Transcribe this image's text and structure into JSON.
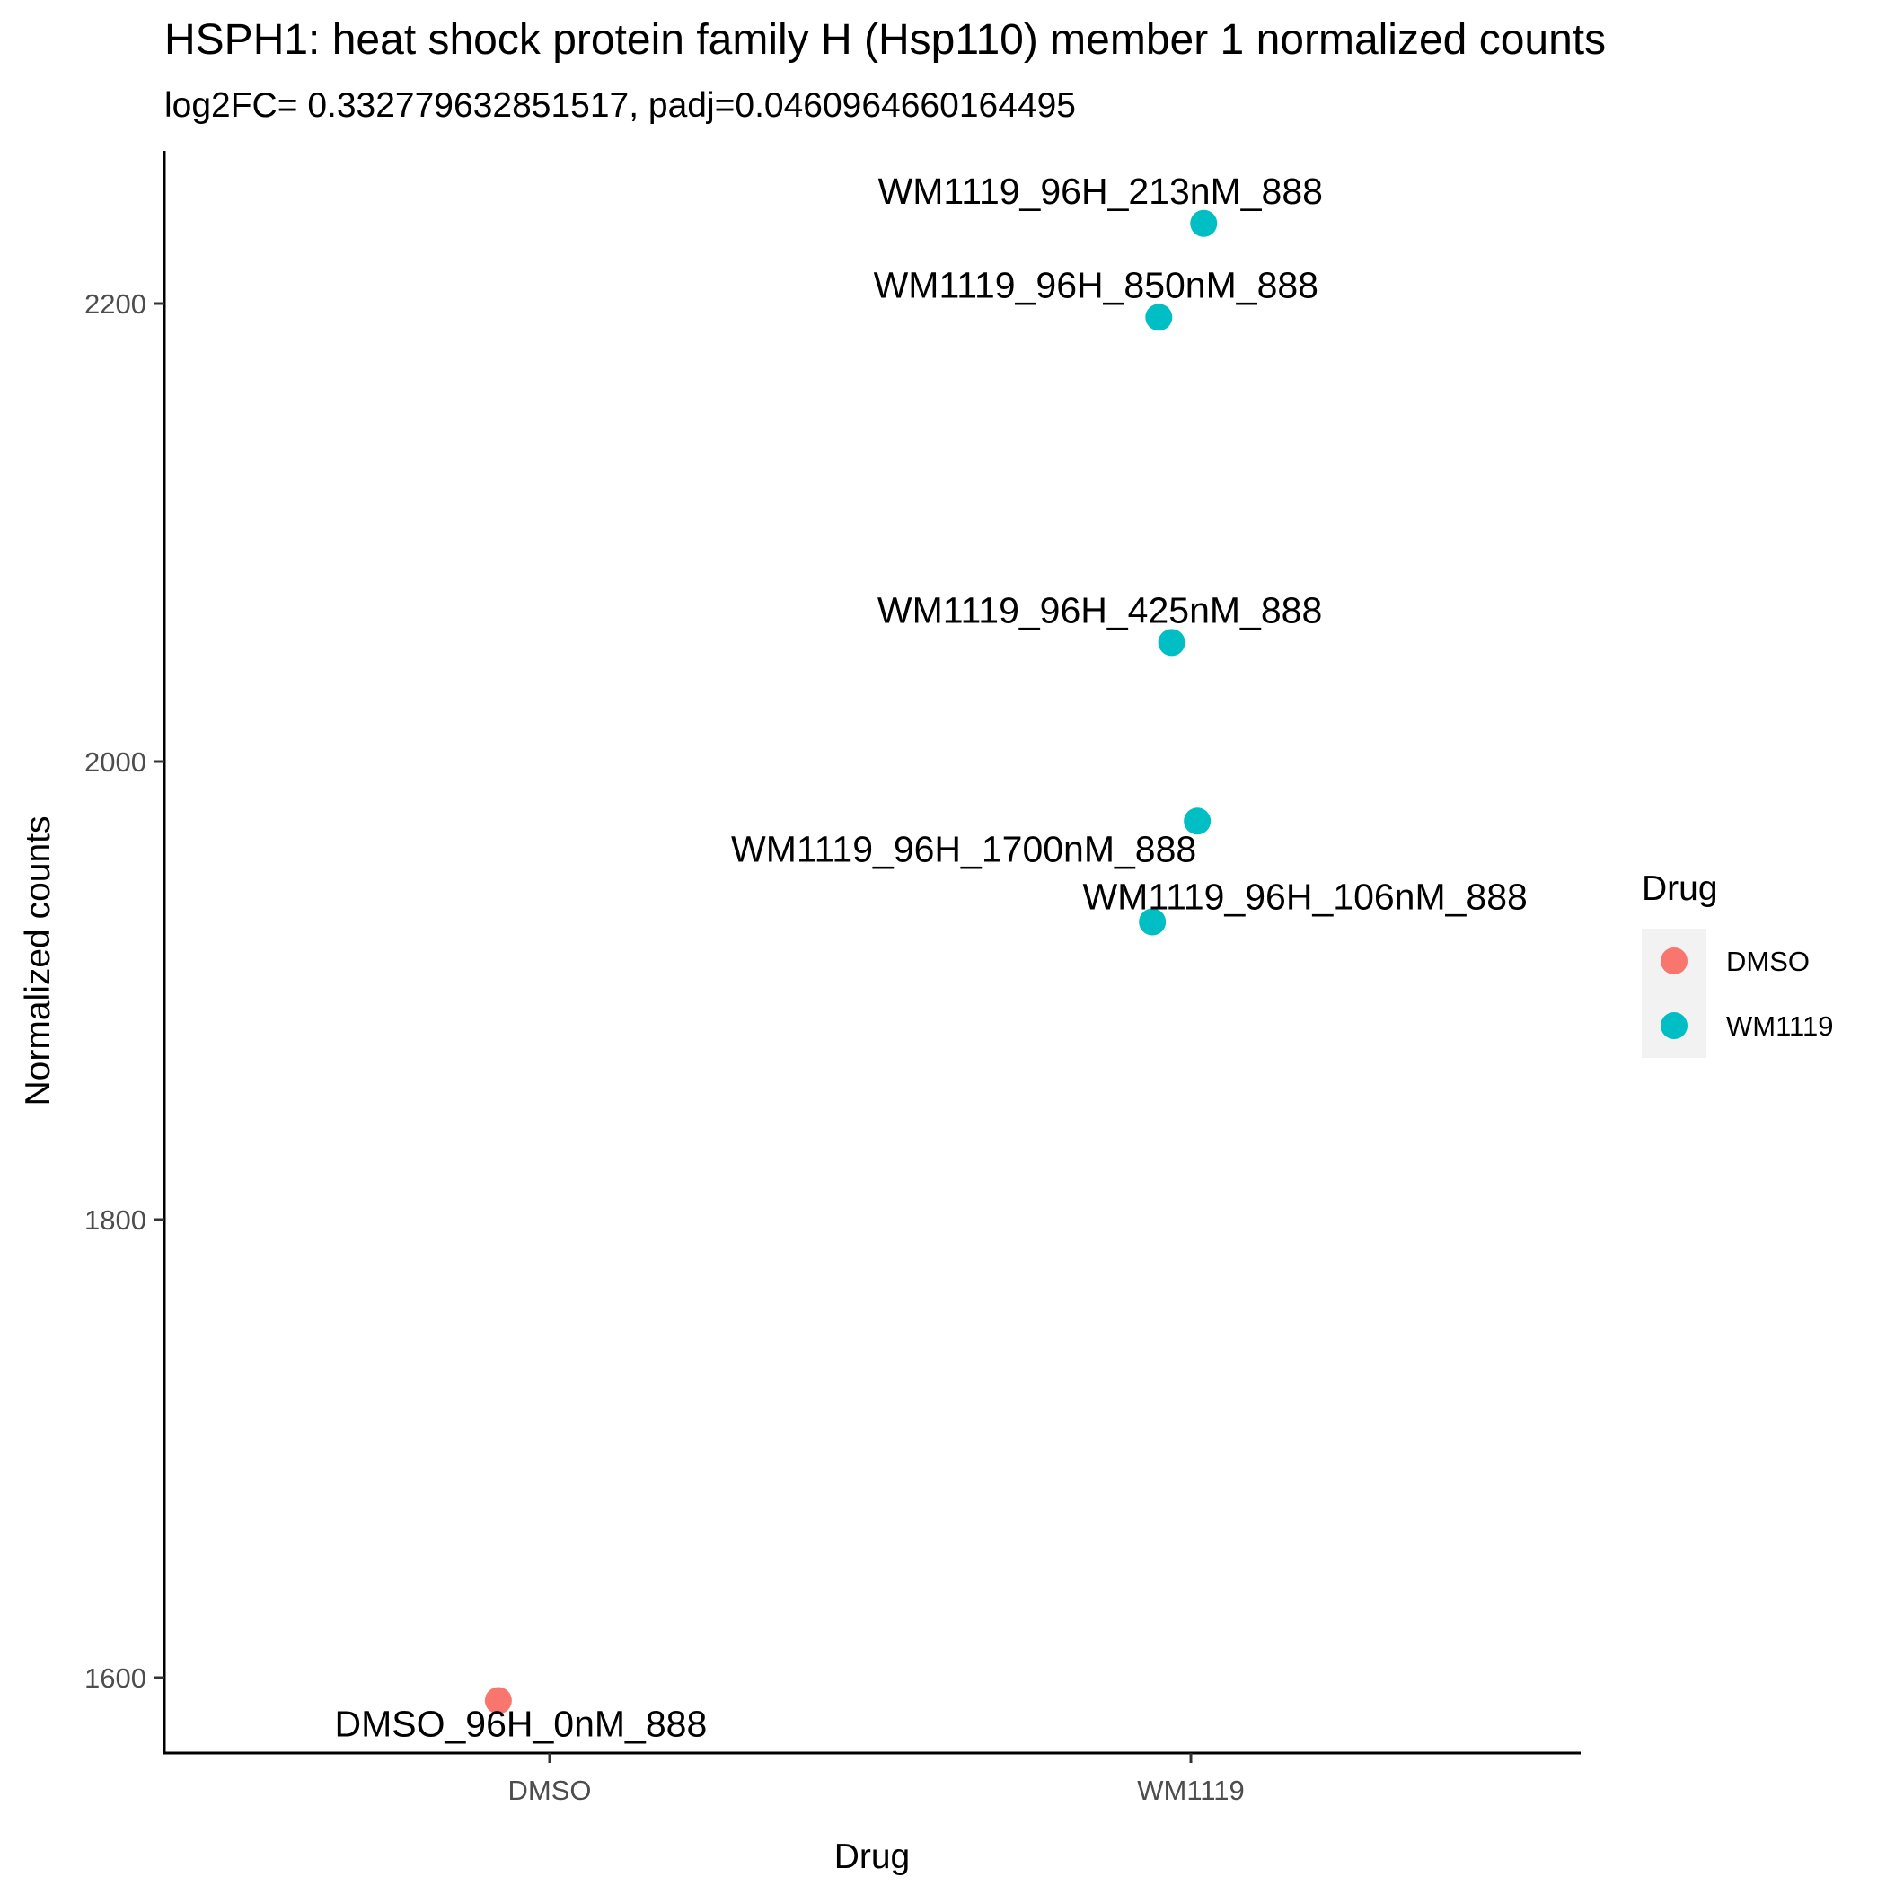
{
  "chart_data": {
    "type": "scatter",
    "title": "HSPH1: heat shock protein family H (Hsp110) member 1 normalized counts",
    "subtitle": "log2FC= 0.332779632851517, padj=0.0460964660164495",
    "xlabel": "Drug",
    "ylabel": "Normalized counts",
    "categories": [
      "DMSO",
      "WM1119"
    ],
    "y_ticks": [
      1600,
      1800,
      2000,
      2200
    ],
    "ylim": [
      1560,
      2268
    ],
    "legend": {
      "title": "Drug",
      "position": "right",
      "entries": [
        {
          "label": "DMSO",
          "color": "#F8766D"
        },
        {
          "label": "WM1119",
          "color": "#00BFC4"
        }
      ]
    },
    "points": [
      {
        "label": "DMSO_96H_0nM_888",
        "category": "DMSO",
        "y": 1590,
        "jitter": -0.08,
        "color": "#F8766D"
      },
      {
        "label": "WM1119_96H_213nM_888",
        "category": "WM1119",
        "y": 2235,
        "jitter": 0.02,
        "color": "#00BFC4"
      },
      {
        "label": "WM1119_96H_850nM_888",
        "category": "WM1119",
        "y": 2194,
        "jitter": -0.05,
        "color": "#00BFC4"
      },
      {
        "label": "WM1119_96H_425nM_888",
        "category": "WM1119",
        "y": 2052,
        "jitter": -0.03,
        "color": "#00BFC4"
      },
      {
        "label": "WM1119_96H_1700nM_888",
        "category": "WM1119",
        "y": 1974,
        "jitter": 0.01,
        "color": "#00BFC4"
      },
      {
        "label": "WM1119_96H_106nM_888",
        "category": "WM1119",
        "y": 1930,
        "jitter": -0.06,
        "color": "#00BFC4"
      }
    ]
  }
}
